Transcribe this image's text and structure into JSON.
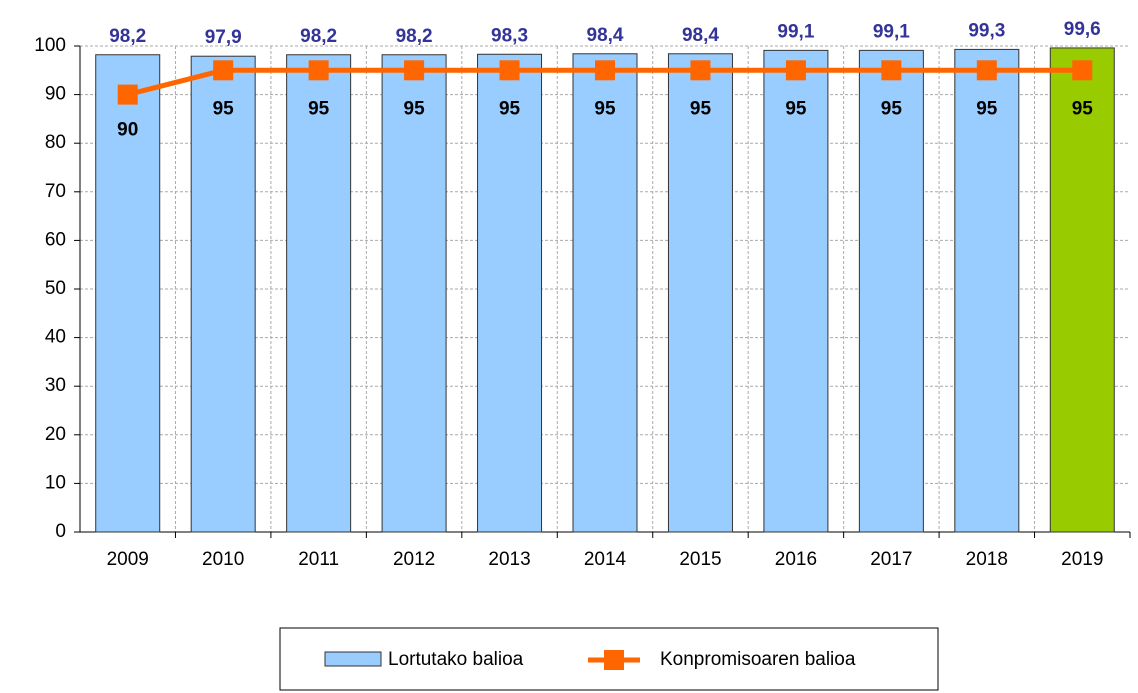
{
  "chart_data": {
    "type": "bar",
    "categories": [
      "2009",
      "2010",
      "2011",
      "2012",
      "2013",
      "2014",
      "2015",
      "2016",
      "2017",
      "2018",
      "2019"
    ],
    "series": [
      {
        "name": "Lortutako balioa",
        "type": "bar",
        "color": "#99ccff",
        "colors": [
          "#99ccff",
          "#99ccff",
          "#99ccff",
          "#99ccff",
          "#99ccff",
          "#99ccff",
          "#99ccff",
          "#99ccff",
          "#99ccff",
          "#99ccff",
          "#99cc00"
        ],
        "values": [
          98.2,
          97.9,
          98.2,
          98.2,
          98.3,
          98.4,
          98.4,
          99.1,
          99.1,
          99.3,
          99.6
        ],
        "value_labels": [
          "98,2",
          "97,9",
          "98,2",
          "98,2",
          "98,3",
          "98,4",
          "98,4",
          "99,1",
          "99,1",
          "99,3",
          "99,6"
        ]
      },
      {
        "name": "Konpromisoaren balioa",
        "type": "line",
        "color": "#ff6600",
        "values": [
          90,
          95,
          95,
          95,
          95,
          95,
          95,
          95,
          95,
          95,
          95
        ]
      }
    ],
    "ylim": [
      0,
      100
    ],
    "yticks": [
      0,
      10,
      20,
      30,
      40,
      50,
      60,
      70,
      80,
      90,
      100
    ],
    "grid": true,
    "legend": "bottom"
  }
}
